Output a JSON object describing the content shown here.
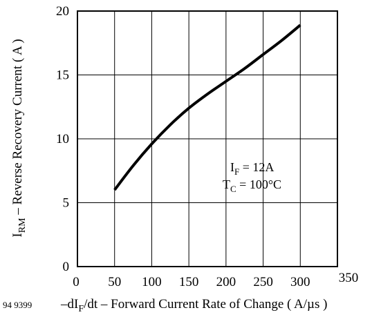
{
  "chart_data": {
    "type": "line",
    "figure_id": "94 9399",
    "xlabel": {
      "prefix": "–dI",
      "sub": "F",
      "suffix": "/dt – Forward Current Rate of Change ( A/µs )"
    },
    "ylabel": {
      "main": "I",
      "sub": "RM",
      "suffix": " – Reverse Recovery Current ( A )"
    },
    "xlim": [
      0,
      350
    ],
    "ylim": [
      0,
      20
    ],
    "x_ticks": [
      0,
      50,
      100,
      150,
      200,
      250,
      300,
      350
    ],
    "y_ticks": [
      0,
      5,
      10,
      15,
      20
    ],
    "grid": true,
    "annotations": [
      {
        "main": "I",
        "sub": "F",
        "rest": " = 12A"
      },
      {
        "main": "T",
        "sub": "C",
        "rest": " = 100°C"
      }
    ],
    "series": [
      {
        "color": "#000000",
        "x": [
          50,
          75,
          100,
          125,
          150,
          175,
          200,
          225,
          250,
          275,
          300
        ],
        "y": [
          6.0,
          7.9,
          9.6,
          11.1,
          12.4,
          13.5,
          14.5,
          15.5,
          16.6,
          17.7,
          18.9
        ]
      }
    ]
  }
}
